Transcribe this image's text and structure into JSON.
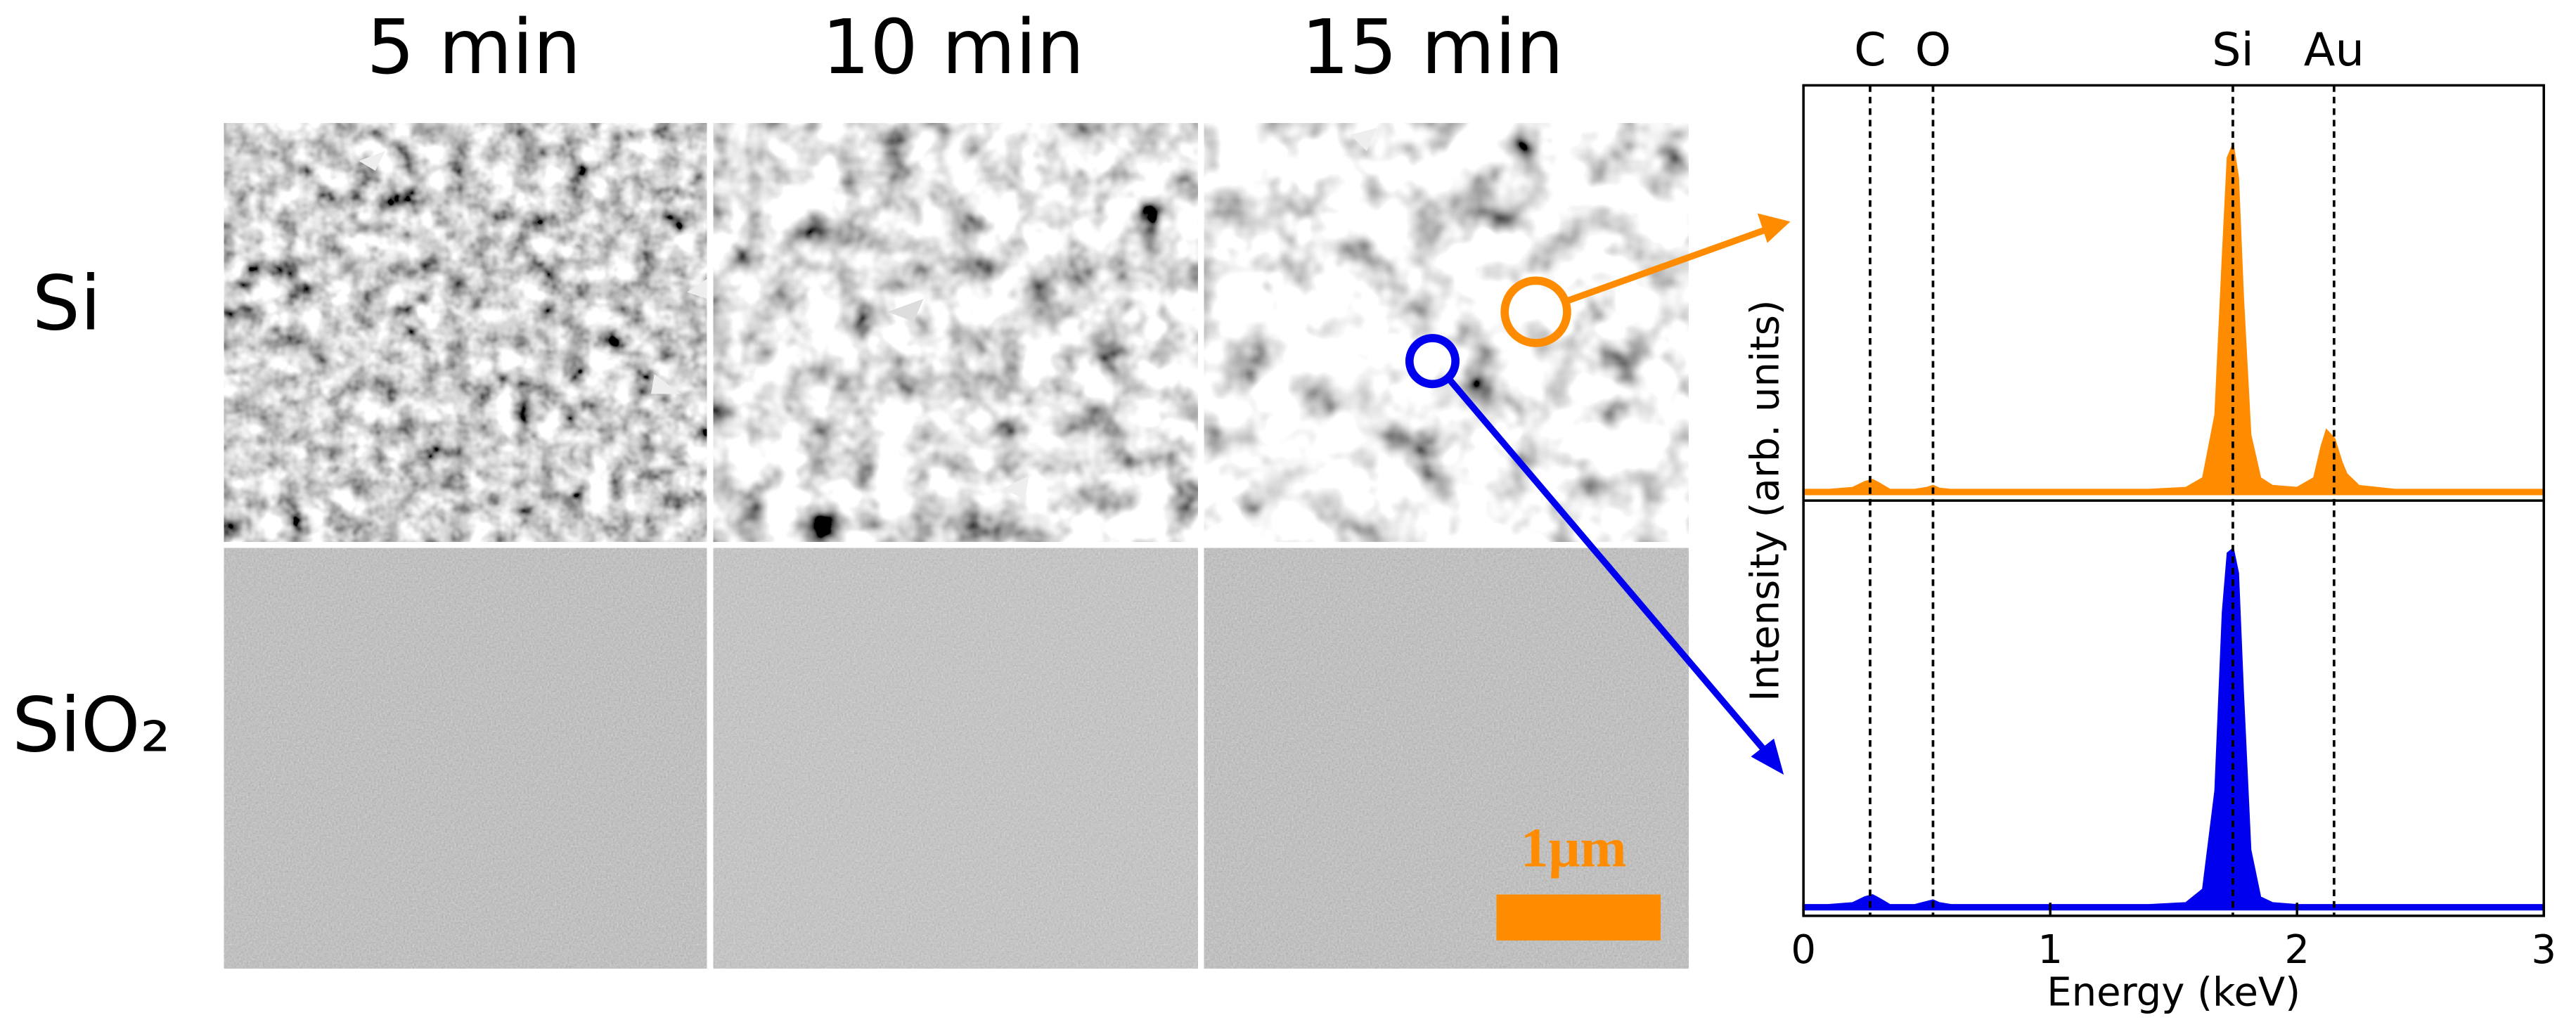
{
  "sem": {
    "columns": [
      "5 min",
      "10 min",
      "15 min"
    ],
    "rows": [
      "Si",
      "SiO₂"
    ],
    "scale_bar": "1μm"
  },
  "chart_data": {
    "type": "area",
    "xlabel": "Energy (keV)",
    "ylabel": "Intensity (arb. units)",
    "xlim": [
      0,
      3
    ],
    "xticks": [
      0,
      1,
      2,
      3
    ],
    "ylim": [
      0,
      100
    ],
    "x": [
      0,
      0.1,
      0.2,
      0.25,
      0.28,
      0.31,
      0.35,
      0.45,
      0.5,
      0.525,
      0.55,
      0.6,
      0.8,
      1.0,
      1.2,
      1.4,
      1.55,
      1.62,
      1.67,
      1.7,
      1.72,
      1.74,
      1.76,
      1.78,
      1.81,
      1.85,
      1.9,
      2.0,
      2.07,
      2.1,
      2.12,
      2.15,
      2.18,
      2.2,
      2.25,
      2.4,
      2.7,
      3.0
    ],
    "series": [
      {
        "color": "#ff8c00",
        "values": [
          1,
          1,
          1.5,
          3,
          3.5,
          2.5,
          1,
          1,
          1.5,
          2,
          1.3,
          1,
          1,
          1,
          1,
          1,
          1.5,
          4,
          20,
          60,
          85,
          88,
          80,
          50,
          15,
          4,
          2,
          1.5,
          4,
          12,
          16,
          14,
          8,
          5,
          2,
          1,
          1,
          1
        ]
      },
      {
        "color": "#0000ee",
        "values": [
          1,
          1,
          1.5,
          3,
          3.5,
          2.5,
          1,
          1,
          1.8,
          2.2,
          1.5,
          1,
          1,
          1,
          1,
          1,
          1.5,
          5,
          30,
          75,
          90,
          91,
          85,
          55,
          15,
          3,
          1.5,
          1,
          1,
          1,
          1,
          1,
          1,
          1,
          1,
          1,
          1,
          1
        ]
      }
    ],
    "peak_labels": [
      {
        "label": "C",
        "x": 0.27
      },
      {
        "label": "O",
        "x": 0.525
      },
      {
        "label": "Si",
        "x": 1.74
      },
      {
        "label": "Au",
        "x": 2.15
      }
    ]
  }
}
